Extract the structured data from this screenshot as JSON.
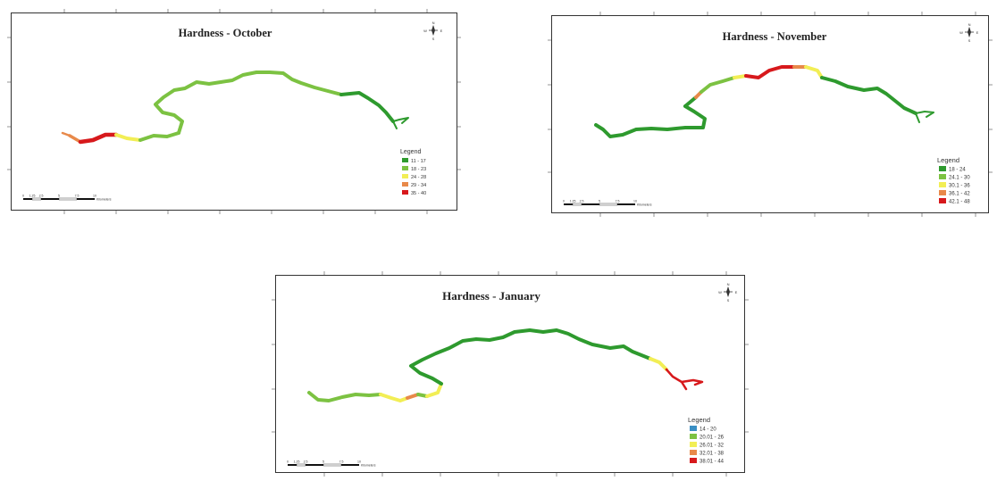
{
  "maps": [
    {
      "id": "october",
      "title": "Hardness - October",
      "legend_title": "Legend",
      "classes": [
        {
          "label": "11 - 17",
          "color": "#2e9a2e"
        },
        {
          "label": "18 - 23",
          "color": "#7cc242"
        },
        {
          "label": "24 - 28",
          "color": "#f2ee55"
        },
        {
          "label": "29 - 34",
          "color": "#e8894a"
        },
        {
          "label": "35 - 40",
          "color": "#d7191c"
        }
      ]
    },
    {
      "id": "november",
      "title": "Hardness - November",
      "legend_title": "Legend",
      "classes": [
        {
          "label": "18 - 24",
          "color": "#2e9a2e"
        },
        {
          "label": "24.1 - 30",
          "color": "#7cc242"
        },
        {
          "label": "30.1 - 36",
          "color": "#f2ee55"
        },
        {
          "label": "36.1 - 42",
          "color": "#e8894a"
        },
        {
          "label": "42.1 - 48",
          "color": "#d7191c"
        }
      ]
    },
    {
      "id": "january",
      "title": "Hardness - January",
      "legend_title": "Legend",
      "classes": [
        {
          "label": "14 - 20",
          "color": "#3a8fc4"
        },
        {
          "label": "20.01 - 26",
          "color": "#7cc242"
        },
        {
          "label": "26.01 - 32",
          "color": "#f2ee55"
        },
        {
          "label": "32.01 - 38",
          "color": "#e8894a"
        },
        {
          "label": "38.01 - 44",
          "color": "#d7191c"
        }
      ]
    }
  ],
  "compass": {
    "n": "N",
    "s": "S",
    "e": "E",
    "w": "W",
    "icon": "north-arrow-icon"
  },
  "scale_bar": {
    "labels": [
      "0",
      "1.25",
      "2.5",
      "5",
      "7.5",
      "10"
    ],
    "unit": "Kilometers"
  }
}
